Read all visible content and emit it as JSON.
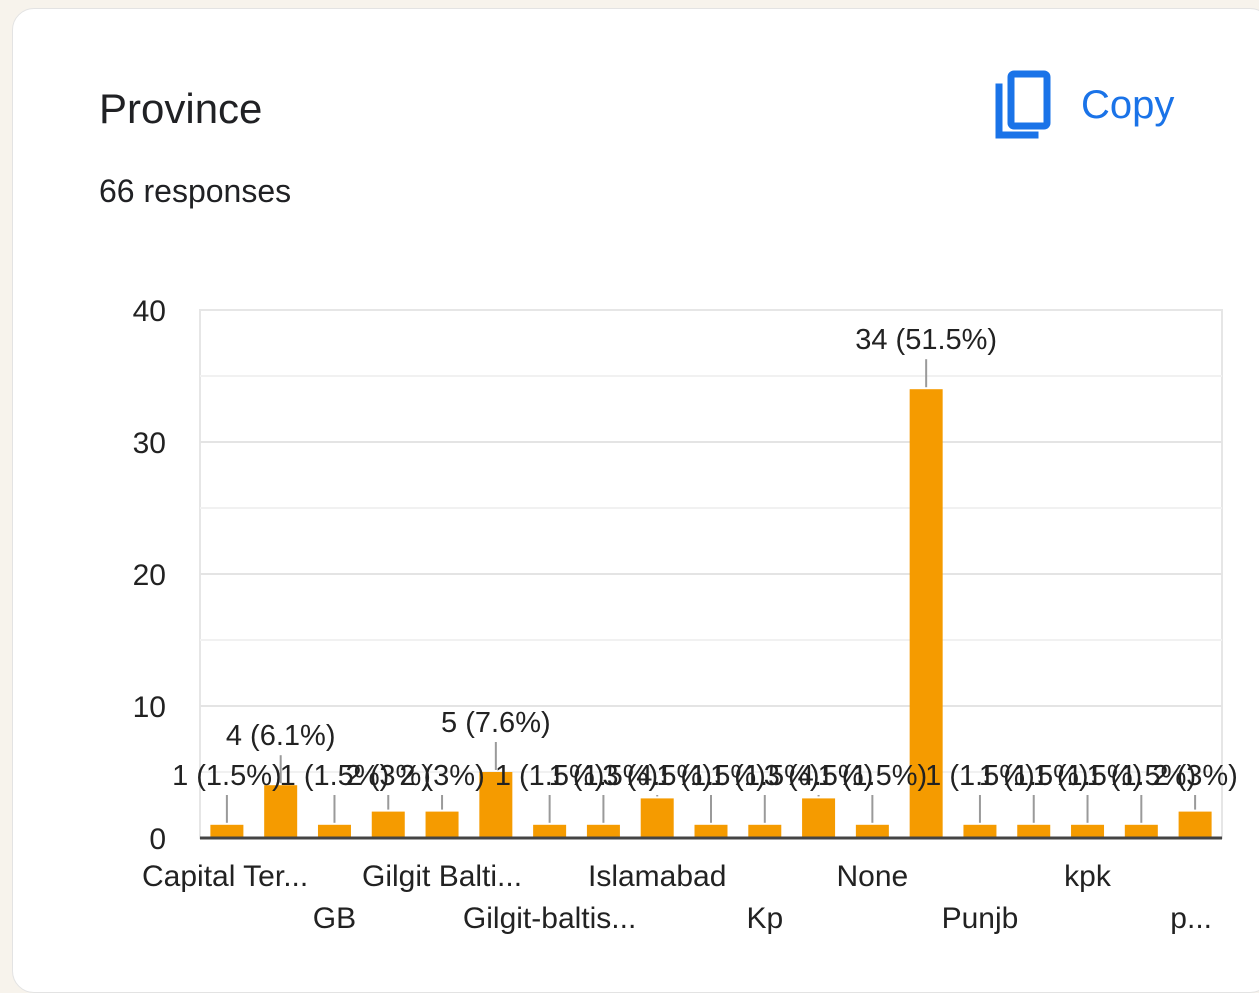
{
  "header": {
    "title": "Province",
    "responses": "66 responses",
    "copy_label": "Copy"
  },
  "colors": {
    "bar": "#f59b00",
    "accent": "#1a73e8",
    "grid": "#e6e6e6",
    "axis": "#444444"
  },
  "icons": {
    "copy": "copy-icon"
  },
  "chart_data": {
    "type": "bar",
    "ylim": [
      0,
      40
    ],
    "yticks": [
      0,
      10,
      20,
      30,
      40
    ],
    "grid": true,
    "categories": [
      "Capital Ter...",
      "",
      "GB",
      "",
      "Gilgit Balti...",
      "",
      "Gilgit-baltis...",
      "",
      "Islamabad",
      "",
      "Kp",
      "",
      "None",
      "",
      "Punjb",
      "",
      "kpk",
      "",
      "p..."
    ],
    "values": [
      1,
      4,
      1,
      2,
      2,
      5,
      1,
      1,
      3,
      1,
      1,
      3,
      1,
      34,
      1,
      1,
      1,
      1,
      2
    ],
    "data_labels": [
      "1 (1.5%)",
      "4 (6.1%)",
      "1 (1.5%)",
      "2 (3%)",
      "2 (3%)",
      "5 (7.6%)",
      "1 (1.5%)",
      "1 (1.5%)",
      "3 (4.5%)",
      "1 (1.5%)",
      "1 (1.5%)",
      "3 (4.5%)",
      "1 (1.5%)",
      "34 (51.5%)",
      "1 (1.5%)",
      "1 (1.5%)",
      "1 (1.5%)",
      "1 (1.5%)",
      "2 (3%)"
    ]
  }
}
